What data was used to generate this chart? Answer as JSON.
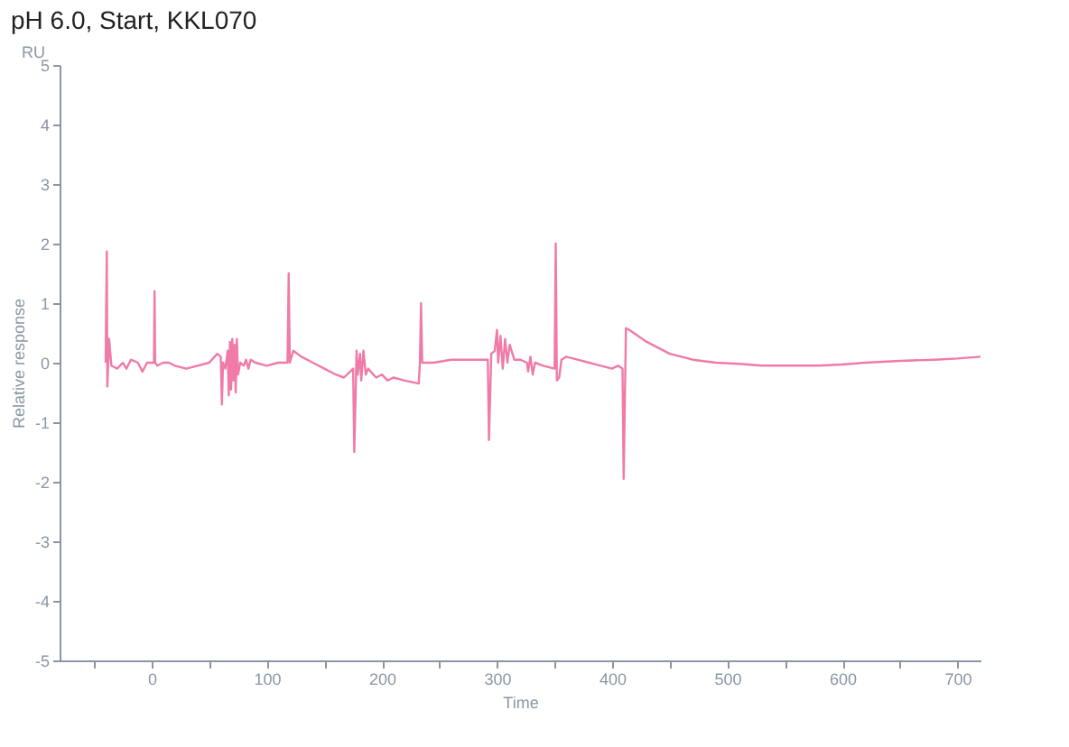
{
  "chart_data": {
    "type": "line",
    "title": "pH 6.0, Start, KKL070",
    "xlabel": "Time",
    "ylabel": "Relative response",
    "annotations": [
      "RU"
    ],
    "xlim": [
      -80,
      720
    ],
    "xticks": [
      {
        "value": -50,
        "label": null
      },
      0,
      {
        "value": 50,
        "label": null
      },
      100,
      {
        "value": 150,
        "label": null
      },
      200,
      {
        "value": 250,
        "label": null
      },
      300,
      {
        "value": 350,
        "label": null
      },
      400,
      {
        "value": 450,
        "label": null
      },
      500,
      {
        "value": 550,
        "label": null
      },
      600,
      {
        "value": 650,
        "label": null
      },
      700
    ],
    "ylim": [
      -5,
      5
    ],
    "yticks": [
      -5,
      -4,
      -3,
      -2,
      -1,
      0,
      1,
      2,
      3,
      4,
      5
    ],
    "grid": false,
    "marker": "none",
    "line_style": "solid",
    "x": [
      -40,
      -39,
      -38.5,
      -37,
      -35,
      -30,
      -25,
      -22,
      -18,
      -12,
      -8,
      -4,
      0,
      2,
      2.5,
      3,
      5,
      10,
      15,
      20,
      30,
      40,
      50,
      57,
      60,
      61,
      62,
      64,
      66,
      67,
      68,
      69,
      70,
      71,
      72,
      73,
      74,
      75,
      77,
      80,
      82,
      84,
      86,
      90,
      100,
      110,
      118,
      119,
      120,
      123,
      130,
      140,
      150,
      160,
      167,
      175,
      176,
      178,
      179,
      181,
      182,
      184,
      186,
      188,
      195,
      200,
      205,
      210,
      220,
      232,
      233,
      234,
      235,
      245,
      260,
      280,
      292,
      293,
      295,
      298,
      300,
      301,
      303,
      305,
      307,
      309,
      311,
      315,
      320,
      326,
      327,
      329,
      331,
      333,
      340,
      350,
      351,
      352,
      354,
      356,
      360,
      370,
      380,
      390,
      400,
      405,
      409,
      410,
      412,
      415,
      430,
      450,
      470,
      490,
      510,
      530,
      550,
      580,
      600,
      620,
      650,
      680,
      700,
      720
    ],
    "series": [
      {
        "color": "#f07aa8",
        "values": [
          0,
          1.87,
          -0.4,
          0.4,
          -0.05,
          -0.1,
          0,
          -0.1,
          0.05,
          0,
          -0.15,
          0,
          0,
          0,
          1.2,
          0,
          -0.05,
          0,
          0,
          -0.05,
          -0.1,
          -0.05,
          0,
          0.15,
          0.1,
          -0.7,
          0,
          -0.1,
          0.2,
          -0.55,
          0.35,
          -0.45,
          0.4,
          -0.3,
          0.3,
          -0.5,
          0.4,
          -0.2,
          0,
          -0.05,
          0.05,
          -0.1,
          0.05,
          0,
          -0.05,
          0,
          0,
          1.5,
          0,
          0.2,
          0.1,
          0,
          -0.1,
          -0.2,
          -0.25,
          -0.1,
          -1.5,
          0.2,
          -0.2,
          0.15,
          -0.3,
          0.2,
          -0.2,
          -0.1,
          -0.25,
          -0.2,
          -0.3,
          -0.25,
          -0.3,
          -0.35,
          0,
          1.0,
          0,
          0,
          0.05,
          0.05,
          0.05,
          -1.3,
          0.15,
          0.2,
          0.55,
          0,
          0.45,
          -0.1,
          0.4,
          0,
          0.3,
          0.05,
          0.05,
          0,
          -0.15,
          0.1,
          -0.2,
          0,
          -0.05,
          -0.1,
          2.0,
          -0.3,
          -0.25,
          0.05,
          0.1,
          0.05,
          0,
          -0.05,
          -0.1,
          -0.05,
          -0.1,
          -1.95,
          0.58,
          0.55,
          0.35,
          0.15,
          0.05,
          0,
          -0.02,
          -0.05,
          -0.05,
          -0.05,
          -0.03,
          0,
          0.03,
          0.05,
          0.07,
          0.1
        ]
      }
    ]
  }
}
